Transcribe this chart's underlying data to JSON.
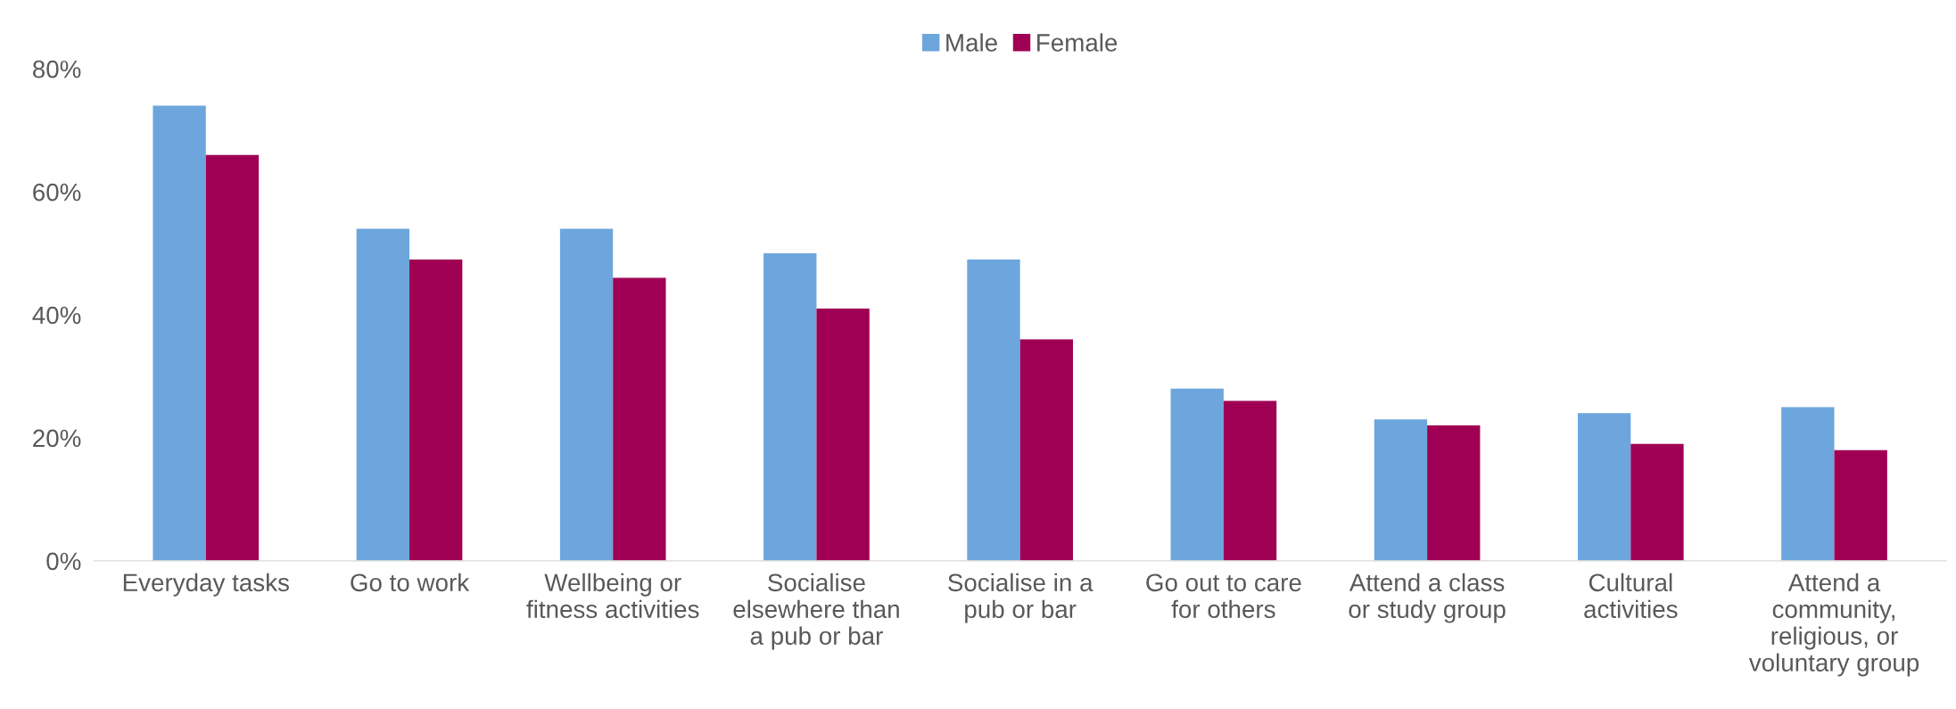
{
  "chart_data": {
    "type": "bar",
    "categories": [
      "Everyday tasks",
      "Go to work",
      "Wellbeing or\nfitness activities",
      "Socialise\nelsewhere than\na pub or bar",
      "Socialise in a\npub or bar",
      "Go out to care\nfor others",
      "Attend a class\nor study group",
      "Cultural\nactivities",
      "Attend a\ncommunity,\nreligious, or\nvoluntary group"
    ],
    "series": [
      {
        "name": "Male",
        "color": "#6ca6dd",
        "values": [
          74,
          54,
          54,
          50,
          49,
          28,
          23,
          24,
          25
        ]
      },
      {
        "name": "Female",
        "color": "#a00054",
        "values": [
          66,
          49,
          46,
          41,
          36,
          26,
          22,
          19,
          18
        ]
      }
    ],
    "ylim": [
      0,
      80
    ],
    "yticks": [
      {
        "value": 0,
        "label": "0%"
      },
      {
        "value": 20,
        "label": "20%"
      },
      {
        "value": 40,
        "label": "40%"
      },
      {
        "value": 60,
        "label": "60%"
      },
      {
        "value": 80,
        "label": "80%"
      }
    ],
    "grid": false,
    "legend": "top"
  }
}
